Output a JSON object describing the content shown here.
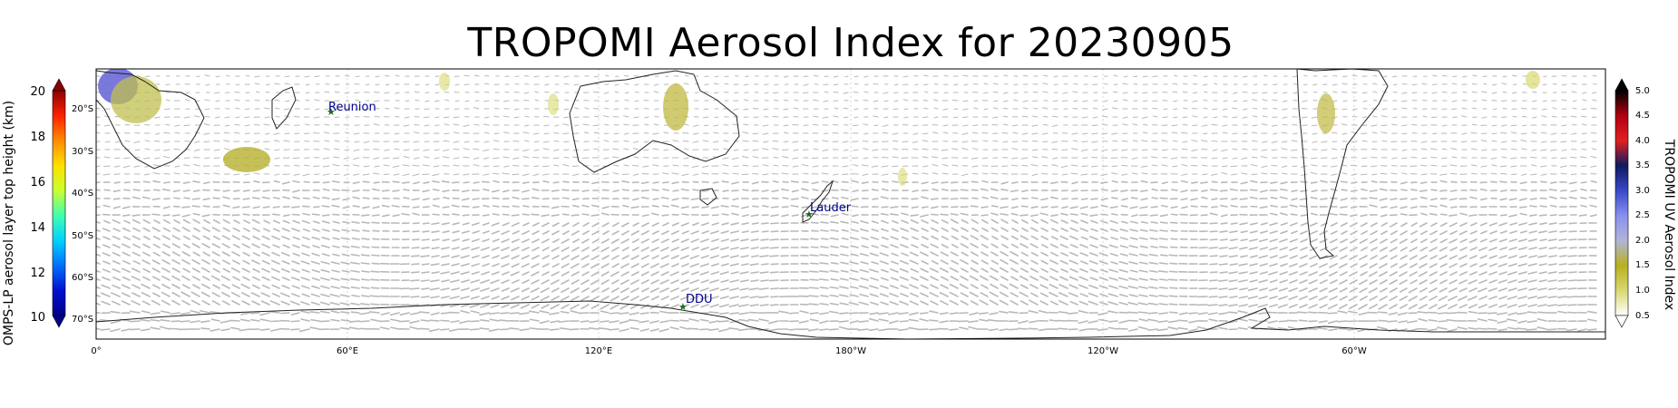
{
  "title": "TROPOMI Aerosol Index for 20230905",
  "map": {
    "lat_labels": [
      "20°S",
      "30°S",
      "40°S",
      "50°S",
      "60°S",
      "70°S"
    ],
    "lon_labels": [
      "0°",
      "60°E",
      "120°E",
      "180°W",
      "120°W",
      "60°W"
    ],
    "stations": [
      {
        "name": "Reunion"
      },
      {
        "name": "Lauder"
      },
      {
        "name": "DDU"
      }
    ]
  },
  "left_colorbar": {
    "label": "OMPS-LP aerosol layer top height (km)",
    "ticks": [
      "20",
      "18",
      "16",
      "14",
      "12",
      "10"
    ],
    "colors": [
      "#8b0000",
      "#ff2000",
      "#ff8c00",
      "#ffe000",
      "#c8ff30",
      "#40ffb0",
      "#00d0ff",
      "#0070ff",
      "#0010d0",
      "#00008b"
    ]
  },
  "right_colorbar": {
    "label": "TROPOMI UV Aerosol Index",
    "ticks": [
      "5.0",
      "4.5",
      "4.0",
      "3.5",
      "3.0",
      "2.5",
      "2.0",
      "1.5",
      "1.0",
      "0.5"
    ],
    "colors": [
      "#000000",
      "#b00010",
      "#e02020",
      "#101a60",
      "#3848c8",
      "#8890f0",
      "#b0b4d8",
      "#b8b020",
      "#d8d870",
      "#ffffff"
    ]
  },
  "colors": {
    "arrows": "#b8b8b8",
    "coast": "#222222",
    "aerosol": "#c8c84a",
    "station": "#1a6b1a",
    "station_label": "#00008b"
  }
}
